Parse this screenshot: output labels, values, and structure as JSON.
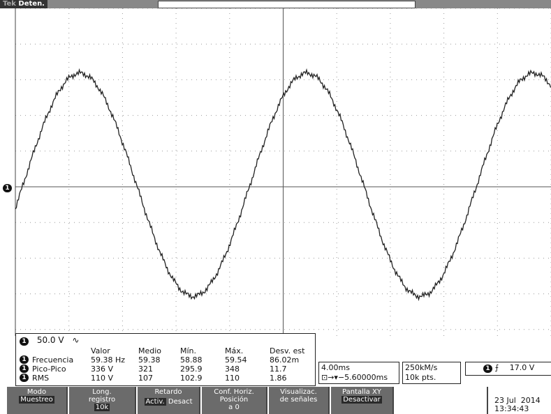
{
  "status": {
    "brand": "Tek",
    "state": "Deten."
  },
  "trace_marker": "1",
  "channel": {
    "number": "1",
    "scale": "50.0 V",
    "coupling": "∿"
  },
  "measurements": {
    "headers": [
      "Valor",
      "Medio",
      "Mín.",
      "Máx.",
      "Desv. est"
    ],
    "rows": [
      {
        "channel": "1",
        "name": "Frecuencia",
        "values": [
          "59.38 Hz",
          "59.38",
          "58.88",
          "59.54",
          "86.02m"
        ]
      },
      {
        "channel": "1",
        "name": "Pico-Pico",
        "values": [
          "336 V",
          "321",
          "295.9",
          "348",
          "11.7"
        ]
      },
      {
        "channel": "1",
        "name": "RMS",
        "values": [
          "110 V",
          "107",
          "102.9",
          "110",
          "1.86"
        ]
      }
    ]
  },
  "horizontal": {
    "scale": "4.00ms",
    "position": "−5.60000ms"
  },
  "acquisition": {
    "rate": "250kM/s",
    "points": "10k pts."
  },
  "trigger": {
    "channel": "1",
    "level": "17.0 V"
  },
  "menu": [
    {
      "lines": [
        "Modo"
      ],
      "value": "Muestreo"
    },
    {
      "lines": [
        "Long.",
        "registro"
      ],
      "value": "10k"
    },
    {
      "lines": [
        "Retardo"
      ],
      "options": [
        "Activ.",
        "Desact"
      ]
    },
    {
      "lines": [
        "Conf. Horiz.",
        "Posición",
        "a 0"
      ]
    },
    {
      "lines": [
        "Visualizac.",
        "de señales"
      ]
    },
    {
      "lines": [
        "Pantalla XY"
      ],
      "value": "Desactivar"
    }
  ],
  "datetime": {
    "date": "23 Jul  2014",
    "time": "13:34:43"
  }
}
